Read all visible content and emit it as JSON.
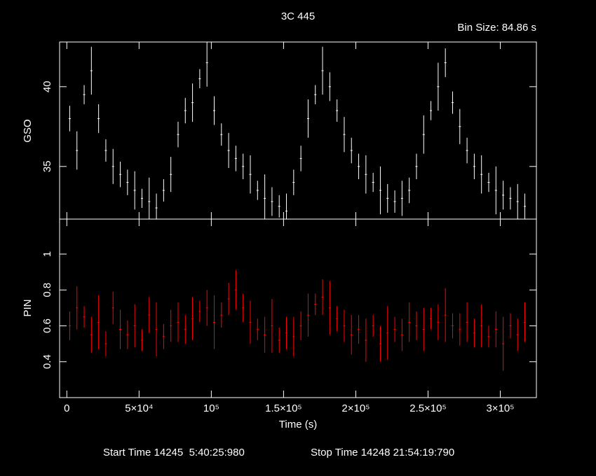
{
  "chart_data": [
    {
      "type": "errorbar",
      "title": "3C 445",
      "subtitle": "Bin Size: 84.86 s",
      "ylabel": "GSO",
      "color": "#ffffff",
      "x": [
        2000,
        7000,
        12000,
        17000,
        22000,
        27000,
        32000,
        37000,
        42000,
        47000,
        52000,
        57000,
        62000,
        67000,
        72000,
        77000,
        82000,
        87000,
        92000,
        97000,
        102000,
        107000,
        112000,
        117000,
        122000,
        127000,
        132000,
        137000,
        142000,
        147000,
        152000,
        157000,
        162000,
        167000,
        172000,
        177000,
        182000,
        187000,
        192000,
        197000,
        202000,
        207000,
        212000,
        217000,
        222000,
        227000,
        232000,
        237000,
        242000,
        247000,
        252000,
        257000,
        262000,
        267000,
        272000,
        277000,
        282000,
        287000,
        292000,
        297000,
        302000,
        307000,
        312000,
        317000
      ],
      "values": [
        38,
        36,
        39.5,
        41,
        38,
        36,
        35,
        34.5,
        34,
        33.5,
        33,
        32.8,
        32.4,
        33.5,
        34.5,
        37,
        38.5,
        39,
        40.5,
        41.5,
        38.5,
        37,
        36,
        35.5,
        35,
        34.5,
        33.5,
        33,
        32.8,
        32.5,
        32.2,
        34,
        35.5,
        38,
        39.5,
        41,
        40,
        38.5,
        37,
        36,
        35,
        34.5,
        34,
        33.5,
        33,
        32.8,
        33,
        33.5,
        35,
        37,
        38.5,
        40,
        41.5,
        39,
        37.5,
        36,
        35,
        34.5,
        34,
        33.5,
        33.2,
        33,
        32.8,
        32.5
      ],
      "errors": [
        0.8,
        1.2,
        0.6,
        1.5,
        0.9,
        0.7,
        1.1,
        0.8,
        0.8,
        1.2,
        0.6,
        1.5,
        0.9,
        0.7,
        1.1,
        0.8,
        0.8,
        1.2,
        0.6,
        1.5,
        0.9,
        0.7,
        1.1,
        0.8,
        0.8,
        1.2,
        0.6,
        1.5,
        0.9,
        0.7,
        1.1,
        0.8,
        0.8,
        1.2,
        0.6,
        1.5,
        0.9,
        0.7,
        1.1,
        0.8,
        0.8,
        1.2,
        0.6,
        1.5,
        0.9,
        0.7,
        1.1,
        0.8,
        0.8,
        1.2,
        0.6,
        1.5,
        0.9,
        0.7,
        1.1,
        0.8,
        0.8,
        1.2,
        0.6,
        1.5,
        0.9,
        0.7,
        1.1,
        0.8
      ],
      "xlim": [
        -5000,
        325000
      ],
      "ylim": [
        31.7,
        42.8
      ],
      "yticks": [
        35,
        40
      ]
    },
    {
      "type": "errorbar",
      "ylabel": "PIN",
      "xlabel": "Time (s)",
      "color": "#ff0000",
      "x": [
        2000,
        7000,
        12000,
        17000,
        22000,
        27000,
        32000,
        37000,
        42000,
        47000,
        52000,
        57000,
        62000,
        67000,
        72000,
        77000,
        82000,
        87000,
        92000,
        97000,
        102000,
        107000,
        112000,
        117000,
        122000,
        127000,
        132000,
        137000,
        142000,
        147000,
        152000,
        157000,
        162000,
        167000,
        172000,
        177000,
        182000,
        187000,
        192000,
        197000,
        202000,
        207000,
        212000,
        217000,
        222000,
        227000,
        232000,
        237000,
        242000,
        247000,
        252000,
        257000,
        262000,
        267000,
        272000,
        277000,
        282000,
        287000,
        292000,
        297000,
        302000,
        307000,
        312000,
        317000
      ],
      "values": [
        0.6,
        0.7,
        0.65,
        0.55,
        0.62,
        0.5,
        0.7,
        0.58,
        0.55,
        0.6,
        0.52,
        0.66,
        0.58,
        0.54,
        0.6,
        0.62,
        0.58,
        0.64,
        0.68,
        0.7,
        0.62,
        0.66,
        0.75,
        0.8,
        0.7,
        0.62,
        0.58,
        0.55,
        0.6,
        0.52,
        0.56,
        0.54,
        0.6,
        0.66,
        0.72,
        0.76,
        0.7,
        0.64,
        0.6,
        0.55,
        0.58,
        0.52,
        0.6,
        0.5,
        0.56,
        0.58,
        0.55,
        0.62,
        0.6,
        0.58,
        0.64,
        0.62,
        0.66,
        0.6,
        0.58,
        0.62,
        0.56,
        0.6,
        0.54,
        0.58,
        0.5,
        0.6,
        0.55,
        0.62
      ],
      "errors": [
        0.08,
        0.12,
        0.06,
        0.1,
        0.15,
        0.07,
        0.09,
        0.11,
        0.08,
        0.12,
        0.06,
        0.1,
        0.15,
        0.07,
        0.09,
        0.11,
        0.08,
        0.12,
        0.06,
        0.1,
        0.15,
        0.07,
        0.09,
        0.11,
        0.08,
        0.12,
        0.06,
        0.1,
        0.15,
        0.07,
        0.09,
        0.11,
        0.08,
        0.12,
        0.06,
        0.1,
        0.15,
        0.07,
        0.09,
        0.11,
        0.08,
        0.12,
        0.06,
        0.1,
        0.15,
        0.07,
        0.09,
        0.11,
        0.08,
        0.12,
        0.06,
        0.1,
        0.15,
        0.07,
        0.09,
        0.11,
        0.08,
        0.12,
        0.06,
        0.1,
        0.15,
        0.07,
        0.09,
        0.11
      ],
      "xlim": [
        -5000,
        325000
      ],
      "ylim": [
        0.2,
        1.195
      ],
      "yticks": [
        0.4,
        0.6,
        0.8,
        1
      ],
      "xticks": [
        0,
        {
          "value": 50000,
          "label": "5×10⁴"
        },
        {
          "value": 100000,
          "label": "10⁵"
        },
        {
          "value": 150000,
          "label": "1.5×10⁵"
        },
        {
          "value": 200000,
          "label": "2×10⁵"
        },
        {
          "value": 250000,
          "label": "2.5×10⁵"
        },
        {
          "value": 300000,
          "label": "3×10⁵"
        }
      ]
    }
  ],
  "footer": {
    "start": "Start Time 14245  5:40:25:980",
    "stop": "Stop Time 14248 21:54:19:790"
  }
}
